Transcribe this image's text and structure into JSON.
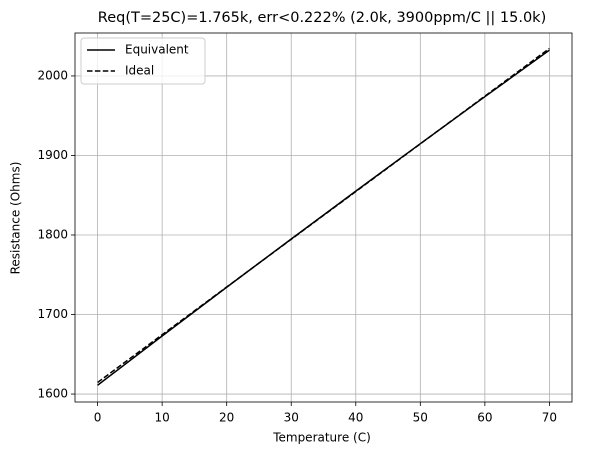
{
  "chart_data": {
    "type": "line",
    "title": "Req(T=25C)=1.765k, err<0.222% (2.0k, 3900ppm/C || 15.0k)",
    "x_label": "Temperature (C)",
    "y_label": "Resistance (Ohms)",
    "x": [
      0,
      10,
      20,
      30,
      40,
      50,
      60,
      70
    ],
    "series": [
      {
        "name": "Equivalent",
        "color": "#000000",
        "dash": "solid",
        "values": [
          1611.1,
          1673.0,
          1734.3,
          1795.0,
          1855.2,
          1914.8,
          1973.9,
          2032.5
        ]
      },
      {
        "name": "Ideal",
        "color": "#000000",
        "dash": "dashed",
        "values": [
          1614.6,
          1674.6,
          1734.6,
          1794.6,
          1854.6,
          1914.6,
          1974.6,
          2034.6
        ]
      }
    ],
    "xlim": [
      -3.5,
      73.5
    ],
    "xticks": [
      0,
      10,
      20,
      30,
      40,
      50,
      60,
      70
    ],
    "ylim": [
      1590,
      2054
    ],
    "yticks": [
      1600,
      1700,
      1800,
      1900,
      2000
    ],
    "grid": true,
    "legend": "upper left"
  }
}
